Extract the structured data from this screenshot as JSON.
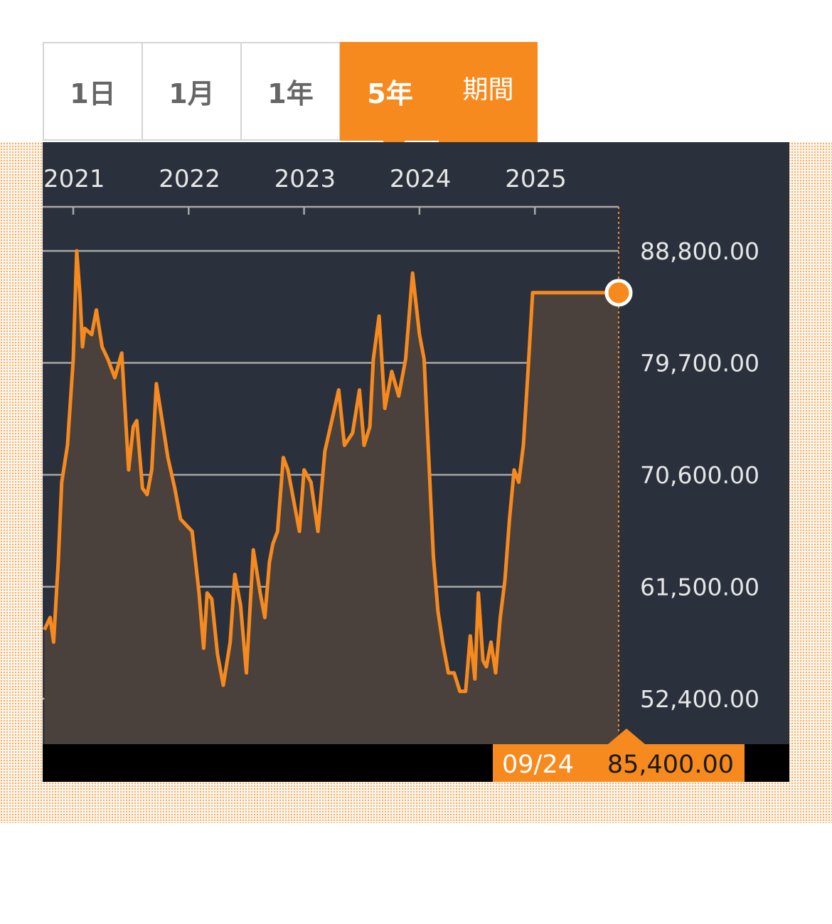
{
  "tabs": [
    {
      "label": "1日",
      "active": false
    },
    {
      "label": "1月",
      "active": false
    },
    {
      "label": "1年",
      "active": false
    },
    {
      "label": "5年",
      "active": true
    },
    {
      "label": "期間",
      "active": false
    }
  ],
  "colors": {
    "accent": "#f78a1e",
    "panel": "#2a313c",
    "area": "#4a413c",
    "bottom_bar": "#000000"
  },
  "readout": {
    "date": "09/24",
    "value": "85,400.00"
  },
  "chart_data": {
    "type": "area",
    "title": "",
    "xlabel": "",
    "ylabel": "",
    "x_ticks": [
      2021,
      2022,
      2023,
      2024,
      2025
    ],
    "y_ticks": [
      "88,800.00",
      "79,700.00",
      "70,600.00",
      "61,500.00",
      "52,400.00"
    ],
    "y_tick_values": [
      88800,
      79700,
      70600,
      61500,
      52400
    ],
    "xlim": [
      2021,
      2025.75
    ],
    "ylim": [
      46920,
      92410
    ],
    "grid": true,
    "series": [
      {
        "name": "",
        "x": [
          2020.75,
          2020.8,
          2020.83,
          2020.87,
          2020.9,
          2020.95,
          2021.0,
          2021.03,
          2021.06,
          2021.08,
          2021.1,
          2021.16,
          2021.2,
          2021.25,
          2021.3,
          2021.36,
          2021.42,
          2021.48,
          2021.52,
          2021.55,
          2021.6,
          2021.64,
          2021.68,
          2021.72,
          2021.77,
          2021.82,
          2021.88,
          2021.93,
          2021.98,
          2022.03,
          2022.09,
          2022.13,
          2022.16,
          2022.2,
          2022.25,
          2022.3,
          2022.36,
          2022.4,
          2022.45,
          2022.5,
          2022.56,
          2022.62,
          2022.66,
          2022.7,
          2022.73,
          2022.77,
          2022.82,
          2022.86,
          2022.9,
          2022.96,
          2023.0,
          2023.06,
          2023.12,
          2023.18,
          2023.24,
          2023.3,
          2023.35,
          2023.42,
          2023.48,
          2023.52,
          2023.57,
          2023.6,
          2023.65,
          2023.7,
          2023.76,
          2023.82,
          2023.88,
          2023.94,
          2024.0,
          2024.04,
          2024.08,
          2024.12,
          2024.16,
          2024.2,
          2024.25,
          2024.3,
          2024.35,
          2024.4,
          2024.44,
          2024.48,
          2024.51,
          2024.55,
          2024.58,
          2024.62,
          2024.66,
          2024.7,
          2024.74,
          2024.78,
          2024.82,
          2024.86,
          2024.9,
          2024.94,
          2024.98,
          2025.03,
          2025.08,
          2025.12,
          2025.16,
          2025.2,
          2025.25,
          2025.3,
          2025.35,
          2025.4,
          2025.45,
          2025.5,
          2025.55,
          2025.6,
          2025.65,
          2025.68,
          2025.72,
          2025.75
        ],
        "values": [
          58000,
          59000,
          57000,
          63500,
          70000,
          73000,
          80000,
          88800,
          85000,
          81000,
          82500,
          82000,
          84000,
          81000,
          80000,
          78500,
          80500,
          71000,
          74500,
          75000,
          69500,
          69000,
          71000,
          78000,
          75000,
          72000,
          69500,
          67000,
          66500,
          66000,
          61000,
          56500,
          61000,
          60500,
          56000,
          53500,
          57000,
          62500,
          60000,
          54500,
          64500,
          61000,
          59000,
          63500,
          65000,
          66000,
          72000,
          71000,
          69000,
          66000,
          71000,
          70000,
          66000,
          72500,
          75000,
          77500,
          73000,
          74000,
          77500,
          73000,
          74500,
          80000,
          83500,
          76000,
          79000,
          77000,
          80000,
          87000,
          82000,
          80000,
          72000,
          64000,
          59500,
          57000,
          54500,
          54500,
          53000,
          53000,
          57500,
          54000,
          61000,
          55500,
          55000,
          57000,
          54500,
          59000,
          62000,
          67000,
          71000,
          70000,
          73000,
          79000,
          85400,
          85400,
          85400,
          85400,
          85400,
          85400,
          85400,
          85400,
          85400,
          85400,
          85400,
          85400,
          85400,
          85400,
          85400,
          85400,
          85400,
          85400
        ]
      }
    ]
  }
}
